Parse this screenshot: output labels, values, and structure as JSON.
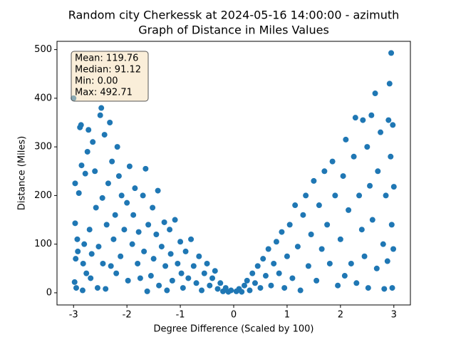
{
  "chart_data": {
    "type": "scatter",
    "title": "Random city Cherkessk at 2024-05-16 14:00:00  - azimuth",
    "subtitle": "Graph of Distance in Miles Values",
    "x_label": "Degree Difference (Scaled by 100)",
    "y_label": "Distance (Miles)",
    "annotation": [
      "Mean: 119.76",
      "Median: 91.12",
      "Min: 0.00",
      "Max: 492.71"
    ],
    "xlim": [
      -3.31,
      3.31
    ],
    "ylim": [
      -25,
      517
    ],
    "xticks": [
      -3,
      -2,
      -1,
      0,
      1,
      2,
      3
    ],
    "yticks": [
      0,
      100,
      200,
      300,
      400,
      500
    ],
    "grid": false,
    "series": [
      {
        "color": "#1f77b4",
        "x": [
          -3.0,
          -2.97,
          -2.97,
          -2.96,
          -2.98,
          -2.95,
          -2.93,
          -2.92,
          -2.9,
          -2.88,
          -2.86,
          -2.85,
          -2.83,
          -2.82,
          -2.8,
          -2.78,
          -2.76,
          -2.74,
          -2.72,
          -2.7,
          -2.68,
          -2.66,
          -2.64,
          -2.6,
          -2.58,
          -2.55,
          -2.53,
          -2.5,
          -2.48,
          -2.46,
          -2.45,
          -2.42,
          -2.4,
          -2.38,
          -2.35,
          -2.32,
          -2.3,
          -2.28,
          -2.25,
          -2.22,
          -2.2,
          -2.18,
          -2.15,
          -2.12,
          -2.1,
          -2.05,
          -2.0,
          -1.98,
          -1.95,
          -1.9,
          -1.88,
          -1.85,
          -1.8,
          -1.78,
          -1.75,
          -1.7,
          -1.68,
          -1.65,
          -1.62,
          -1.6,
          -1.55,
          -1.52,
          -1.5,
          -1.45,
          -1.42,
          -1.4,
          -1.35,
          -1.3,
          -1.28,
          -1.25,
          -1.2,
          -1.18,
          -1.15,
          -1.1,
          -1.05,
          -1.0,
          -0.98,
          -0.95,
          -0.9,
          -0.85,
          -0.8,
          -0.75,
          -0.7,
          -0.65,
          -0.6,
          -0.55,
          -0.5,
          -0.45,
          -0.4,
          -0.35,
          -0.3,
          -0.25,
          -0.2,
          -0.15,
          -0.1,
          -0.05,
          0.05,
          0.1,
          0.15,
          0.2,
          0.25,
          0.3,
          0.35,
          0.4,
          0.45,
          0.5,
          0.55,
          0.6,
          0.65,
          0.7,
          0.75,
          0.8,
          0.85,
          0.9,
          0.95,
          1.0,
          1.05,
          1.1,
          1.15,
          1.2,
          1.25,
          1.3,
          1.35,
          1.4,
          1.45,
          1.5,
          1.55,
          1.6,
          1.65,
          1.7,
          1.75,
          1.8,
          1.85,
          1.9,
          1.95,
          2.0,
          2.05,
          2.08,
          2.1,
          2.15,
          2.2,
          2.25,
          2.28,
          2.3,
          2.35,
          2.4,
          2.42,
          2.45,
          2.5,
          2.52,
          2.55,
          2.58,
          2.6,
          2.65,
          2.68,
          2.7,
          2.75,
          2.8,
          2.82,
          2.85,
          2.88,
          2.9,
          2.92,
          2.94,
          2.95,
          2.96,
          2.97,
          2.98,
          3.0,
          2.99
        ],
        "values": [
          400,
          225,
          143,
          70,
          22,
          10,
          110,
          85,
          205,
          340,
          345,
          262,
          5,
          60,
          100,
          245,
          40,
          290,
          335,
          130,
          30,
          80,
          310,
          250,
          175,
          10,
          95,
          365,
          380,
          195,
          60,
          325,
          8,
          140,
          225,
          350,
          55,
          270,
          110,
          160,
          40,
          300,
          240,
          75,
          200,
          130,
          185,
          25,
          260,
          100,
          160,
          215,
          60,
          125,
          30,
          200,
          85,
          255,
          3,
          140,
          35,
          175,
          70,
          120,
          210,
          15,
          95,
          145,
          55,
          5,
          130,
          80,
          25,
          150,
          60,
          105,
          40,
          10,
          85,
          30,
          110,
          55,
          20,
          75,
          5,
          40,
          60,
          15,
          30,
          45,
          8,
          20,
          3,
          10,
          2,
          5,
          3,
          8,
          2,
          15,
          25,
          5,
          40,
          20,
          55,
          10,
          70,
          35,
          90,
          15,
          60,
          105,
          40,
          125,
          10,
          75,
          140,
          30,
          180,
          95,
          5,
          160,
          200,
          55,
          120,
          230,
          25,
          180,
          90,
          250,
          140,
          60,
          270,
          200,
          15,
          110,
          240,
          35,
          315,
          170,
          60,
          280,
          360,
          20,
          200,
          130,
          355,
          75,
          300,
          10,
          220,
          365,
          150,
          410,
          50,
          250,
          330,
          100,
          8,
          200,
          65,
          355,
          430,
          280,
          493,
          140,
          10,
          345,
          218,
          90
        ]
      }
    ]
  }
}
